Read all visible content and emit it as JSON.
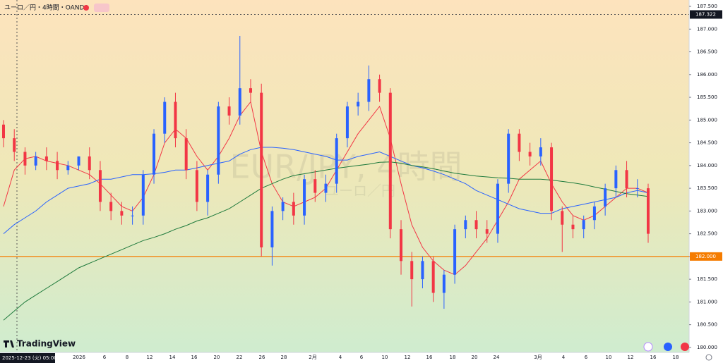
{
  "chart_data": {
    "type": "candlestick",
    "title": "ユーロ／円・4時間・OANDA",
    "watermark": "EUR/JPY, 4時間",
    "watermark_sub": "ユーロ／円",
    "logo": "TradingView",
    "timestamp": "2025-12-23 (火)  05:00",
    "ylim": [
      179.89,
      187.64
    ],
    "yticks": [
      {
        "value": 180,
        "label": "180.000"
      },
      {
        "value": 180.5,
        "label": "180.500"
      },
      {
        "value": 181,
        "label": "181.000"
      },
      {
        "value": 181.5,
        "label": "181.500"
      },
      {
        "value": 182,
        "label": "182.000"
      },
      {
        "value": 182.5,
        "label": "182.500"
      },
      {
        "value": 183,
        "label": "183.000"
      },
      {
        "value": 183.5,
        "label": "183.500"
      },
      {
        "value": 184,
        "label": "184.000"
      },
      {
        "value": 184.5,
        "label": "184.500"
      },
      {
        "value": 185,
        "label": "185.000"
      },
      {
        "value": 185.5,
        "label": "185.500"
      },
      {
        "value": 186,
        "label": "186.000"
      },
      {
        "value": 186.5,
        "label": "186.500"
      },
      {
        "value": 187,
        "label": "187.000"
      },
      {
        "value": 187.5,
        "label": "187.500"
      }
    ],
    "x_labels": [
      "2026",
      "6",
      "8",
      "12",
      "14",
      "16",
      "20",
      "22",
      "26",
      "28",
      "2月",
      "4",
      "6",
      "10",
      "12",
      "16",
      "18",
      "20",
      "24",
      "3月",
      "4",
      "6",
      "10",
      "12",
      "16",
      "18"
    ],
    "up_color": "#2962ff",
    "down_color": "#f23645",
    "open": [
      184.9,
      184.6,
      184.3,
      184.0,
      184.2,
      184.1,
      183.9,
      184.0,
      184.2,
      183.9,
      183.2,
      183.0,
      182.9,
      182.9,
      183.8,
      184.7,
      185.4,
      184.6,
      183.9,
      183.2,
      183.8,
      185.3,
      185.1,
      185.7,
      185.6,
      182.2,
      183.0,
      183.2,
      182.9,
      183.7,
      183.4,
      183.6,
      184.6,
      185.3,
      185.4,
      185.9,
      185.6,
      182.6,
      181.9,
      181.5,
      181.9,
      181.2,
      181.6,
      182.6,
      182.8,
      182.6,
      182.5,
      183.6,
      184.7,
      184.3,
      184.2,
      184.4,
      183.0,
      182.7,
      182.6,
      182.8,
      183.1,
      183.5,
      183.9,
      183.5,
      183.5
    ],
    "high": [
      185.0,
      184.8,
      184.4,
      184.3,
      184.4,
      184.3,
      184.1,
      184.2,
      184.4,
      184.1,
      183.4,
      183.2,
      183.1,
      183.9,
      184.8,
      185.5,
      185.6,
      184.8,
      184.1,
      183.9,
      185.4,
      185.5,
      186.85,
      185.9,
      185.8,
      183.1,
      183.3,
      183.4,
      183.8,
      183.9,
      183.8,
      184.7,
      185.4,
      185.6,
      186.2,
      186.0,
      185.7,
      182.8,
      182.1,
      182.0,
      182.0,
      181.7,
      182.7,
      182.9,
      183.0,
      182.8,
      183.7,
      184.8,
      184.8,
      184.5,
      184.6,
      184.5,
      183.1,
      182.9,
      182.9,
      183.2,
      183.6,
      184.0,
      184.1,
      183.7,
      183.6
    ],
    "low": [
      184.4,
      184.1,
      183.8,
      183.9,
      183.9,
      183.7,
      183.8,
      183.9,
      183.7,
      183.0,
      182.8,
      182.7,
      182.7,
      182.7,
      183.6,
      184.5,
      184.4,
      183.7,
      183.0,
      182.9,
      183.6,
      184.9,
      184.9,
      185.4,
      182.0,
      181.8,
      182.8,
      182.7,
      182.7,
      183.2,
      183.2,
      183.4,
      184.4,
      185.1,
      185.2,
      185.4,
      182.4,
      181.6,
      180.9,
      181.3,
      181.0,
      180.85,
      181.4,
      182.4,
      182.4,
      182.3,
      182.3,
      183.4,
      184.1,
      184.0,
      184.0,
      182.8,
      182.1,
      182.4,
      182.4,
      182.6,
      182.9,
      183.3,
      183.3,
      183.3,
      182.3
    ],
    "close": [
      184.6,
      184.3,
      184.0,
      184.2,
      184.1,
      183.9,
      184.0,
      184.2,
      183.9,
      183.2,
      183.0,
      182.9,
      182.9,
      183.8,
      184.7,
      185.4,
      184.6,
      183.9,
      183.2,
      183.8,
      185.3,
      185.1,
      185.7,
      185.6,
      182.2,
      183.0,
      183.2,
      182.9,
      183.7,
      183.4,
      183.6,
      184.6,
      185.3,
      185.4,
      185.9,
      185.6,
      182.6,
      181.9,
      181.5,
      181.9,
      181.2,
      181.6,
      182.6,
      182.8,
      182.6,
      182.5,
      183.6,
      184.7,
      184.3,
      184.2,
      184.4,
      183.0,
      182.7,
      182.6,
      182.8,
      183.1,
      183.5,
      183.9,
      183.5,
      183.5,
      182.5
    ],
    "lines": [
      {
        "color": "#f23645",
        "values": [
          183.1,
          183.9,
          184.15,
          184.2,
          184.1,
          184.05,
          184.0,
          183.9,
          183.8,
          183.6,
          183.35,
          183.1,
          183.0,
          183.3,
          183.8,
          184.5,
          184.8,
          184.6,
          184.2,
          183.9,
          184.2,
          184.6,
          185.1,
          185.4,
          184.3,
          183.6,
          183.2,
          183.1,
          183.2,
          183.3,
          183.5,
          183.9,
          184.3,
          184.7,
          185.0,
          185.3,
          184.6,
          183.6,
          182.7,
          182.2,
          181.9,
          181.7,
          181.6,
          181.8,
          182.1,
          182.4,
          182.8,
          183.2,
          183.7,
          183.9,
          184.1,
          183.6,
          183.2,
          182.9,
          182.8,
          182.9,
          183.1,
          183.3,
          183.5,
          183.5,
          183.4
        ]
      },
      {
        "color": "#2962ff",
        "values": [
          182.5,
          182.7,
          182.85,
          183.0,
          183.2,
          183.35,
          183.5,
          183.55,
          183.6,
          183.7,
          183.7,
          183.75,
          183.8,
          183.8,
          183.82,
          183.85,
          183.9,
          183.9,
          183.95,
          184.0,
          184.05,
          184.1,
          184.25,
          184.35,
          184.4,
          184.4,
          184.38,
          184.35,
          184.3,
          184.25,
          184.2,
          184.12,
          184.12,
          184.2,
          184.25,
          184.3,
          184.2,
          184.1,
          184.0,
          183.95,
          183.88,
          183.8,
          183.7,
          183.6,
          183.45,
          183.35,
          183.25,
          183.15,
          183.05,
          183.0,
          182.95,
          182.95,
          183.05,
          183.1,
          183.15,
          183.2,
          183.25,
          183.3,
          183.4,
          183.45,
          183.4
        ]
      },
      {
        "color": "#1e7a3c",
        "values": [
          180.6,
          180.8,
          181.0,
          181.15,
          181.3,
          181.45,
          181.6,
          181.75,
          181.85,
          181.95,
          182.05,
          182.15,
          182.25,
          182.35,
          182.42,
          182.5,
          182.6,
          182.68,
          182.78,
          182.85,
          182.95,
          183.05,
          183.2,
          183.35,
          183.5,
          183.6,
          183.7,
          183.78,
          183.82,
          183.86,
          183.9,
          183.94,
          183.97,
          184.0,
          184.03,
          184.07,
          184.08,
          184.05,
          184.0,
          183.97,
          183.93,
          183.88,
          183.83,
          183.8,
          183.77,
          183.75,
          183.73,
          183.72,
          183.7,
          183.7,
          183.7,
          183.68,
          183.65,
          183.62,
          183.58,
          183.53,
          183.48,
          183.43,
          183.38,
          183.35,
          183.32
        ]
      }
    ],
    "hline": {
      "value": 182,
      "label": "182.000",
      "color": "#f57c00"
    },
    "crosshair": {
      "value": 187.322,
      "label": "187.322"
    }
  }
}
